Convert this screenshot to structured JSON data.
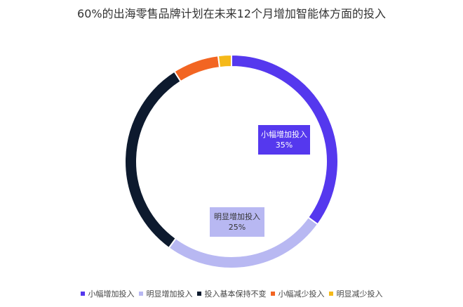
{
  "chart_data": {
    "type": "pie",
    "variant": "donut",
    "title": "60%的出海零售品牌计划在未来12个月增加智能体方面的投入",
    "categories": [
      "小幅增加投入",
      "明显增加投入",
      "投入基本保持不变",
      "小幅减少投入",
      "明显减少投入"
    ],
    "values": [
      35,
      25,
      31,
      7,
      2
    ],
    "unit": "%",
    "colors": [
      "#5538ee",
      "#b8b8f2",
      "#0d1a2e",
      "#f26522",
      "#f5b919"
    ],
    "data_labels": [
      {
        "name": "小幅增加投入",
        "value": "35%"
      },
      {
        "name": "明显增加投入",
        "value": "25%"
      }
    ],
    "legend_position": "bottom"
  }
}
